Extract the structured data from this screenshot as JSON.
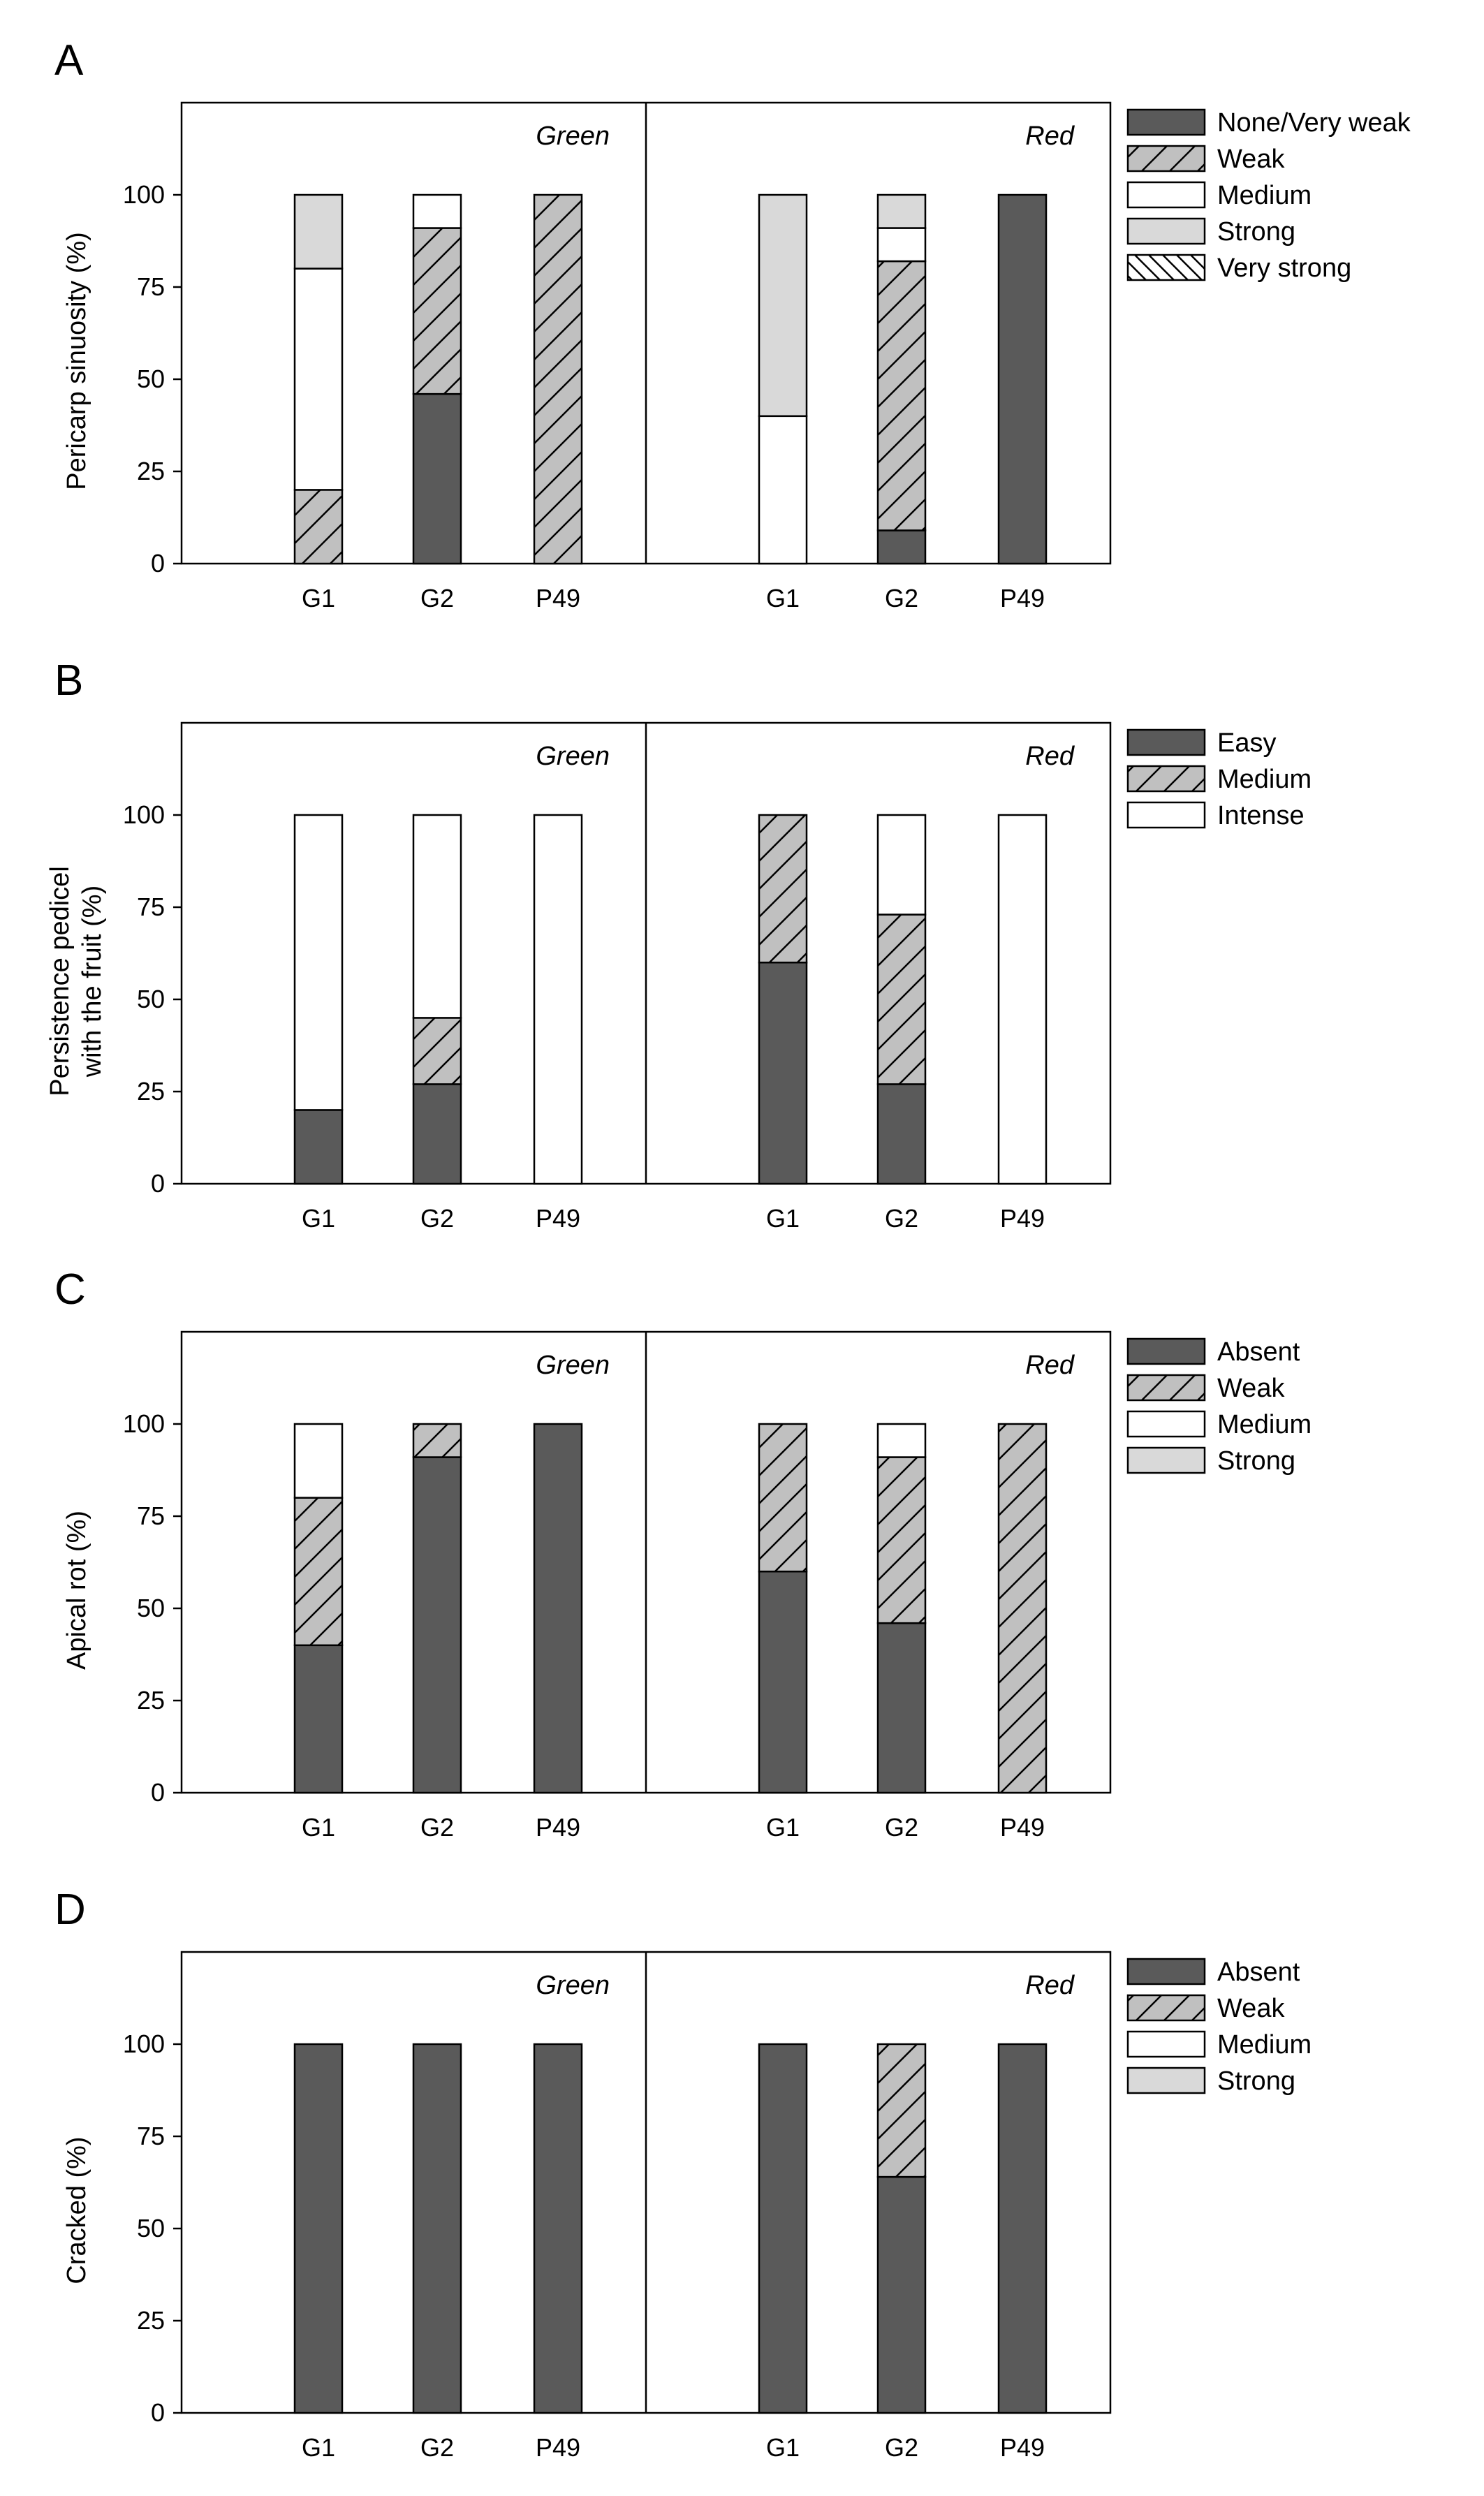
{
  "colors": {
    "none_very_weak": "#5a5a5a",
    "absent": "#5a5a5a",
    "easy": "#5a5a5a",
    "weak": "#c0c0c0",
    "medium": "#ffffff",
    "intense": "#ffffff",
    "strong": "#d9d9d9",
    "very_strong": "#ffffff"
  },
  "chart_data": [
    {
      "type": "bar",
      "stacked": true,
      "panel_label": "A",
      "ylabel": "Pericarp sinuosity (%)",
      "ylim": [
        0,
        125
      ],
      "yticks": [
        0,
        25,
        50,
        75,
        100
      ],
      "categories": [
        "G1",
        "G2",
        "P49"
      ],
      "groups": [
        "Green",
        "Red"
      ],
      "legend": [
        "None/Very weak",
        "Weak",
        "Medium",
        "Strong",
        "Very strong"
      ],
      "series": [
        {
          "name": "None/Very weak",
          "group": "Green",
          "values": [
            0,
            46,
            0
          ]
        },
        {
          "name": "Weak",
          "group": "Green",
          "values": [
            20,
            45,
            100
          ]
        },
        {
          "name": "Medium",
          "group": "Green",
          "values": [
            60,
            9,
            0
          ]
        },
        {
          "name": "Strong",
          "group": "Green",
          "values": [
            20,
            0,
            0
          ]
        },
        {
          "name": "Very strong",
          "group": "Green",
          "values": [
            0,
            0,
            0
          ]
        },
        {
          "name": "None/Very weak",
          "group": "Red",
          "values": [
            0,
            9,
            100
          ]
        },
        {
          "name": "Weak",
          "group": "Red",
          "values": [
            0,
            73,
            0
          ]
        },
        {
          "name": "Medium",
          "group": "Red",
          "values": [
            40,
            9,
            0
          ]
        },
        {
          "name": "Strong",
          "group": "Red",
          "values": [
            60,
            9,
            0
          ]
        },
        {
          "name": "Very strong",
          "group": "Red",
          "values": [
            0,
            0,
            0
          ]
        }
      ]
    },
    {
      "type": "bar",
      "stacked": true,
      "panel_label": "B",
      "ylabel": [
        "Persistence pedicel",
        "with the fruit (%)"
      ],
      "ylim": [
        0,
        125
      ],
      "yticks": [
        0,
        25,
        50,
        75,
        100
      ],
      "categories": [
        "G1",
        "G2",
        "P49"
      ],
      "groups": [
        "Green",
        "Red"
      ],
      "legend": [
        "Easy",
        "Medium",
        "Intense"
      ],
      "series": [
        {
          "name": "Easy",
          "group": "Green",
          "values": [
            20,
            27,
            0
          ]
        },
        {
          "name": "Medium",
          "group": "Green",
          "values": [
            0,
            18,
            0
          ]
        },
        {
          "name": "Intense",
          "group": "Green",
          "values": [
            80,
            55,
            100
          ]
        },
        {
          "name": "Easy",
          "group": "Red",
          "values": [
            60,
            27,
            0
          ]
        },
        {
          "name": "Medium",
          "group": "Red",
          "values": [
            40,
            46,
            0
          ]
        },
        {
          "name": "Intense",
          "group": "Red",
          "values": [
            0,
            27,
            100
          ]
        }
      ]
    },
    {
      "type": "bar",
      "stacked": true,
      "panel_label": "C",
      "ylabel": "Apical rot (%)",
      "ylim": [
        0,
        125
      ],
      "yticks": [
        0,
        25,
        50,
        75,
        100
      ],
      "categories": [
        "G1",
        "G2",
        "P49"
      ],
      "groups": [
        "Green",
        "Red"
      ],
      "legend": [
        "Absent",
        "Weak",
        "Medium",
        "Strong"
      ],
      "series": [
        {
          "name": "Absent",
          "group": "Green",
          "values": [
            40,
            91,
            100
          ]
        },
        {
          "name": "Weak",
          "group": "Green",
          "values": [
            40,
            9,
            0
          ]
        },
        {
          "name": "Medium",
          "group": "Green",
          "values": [
            20,
            0,
            0
          ]
        },
        {
          "name": "Strong",
          "group": "Green",
          "values": [
            0,
            0,
            0
          ]
        },
        {
          "name": "Absent",
          "group": "Red",
          "values": [
            60,
            46,
            0
          ]
        },
        {
          "name": "Weak",
          "group": "Red",
          "values": [
            40,
            45,
            100
          ]
        },
        {
          "name": "Medium",
          "group": "Red",
          "values": [
            0,
            9,
            0
          ]
        },
        {
          "name": "Strong",
          "group": "Red",
          "values": [
            0,
            0,
            0
          ]
        }
      ]
    },
    {
      "type": "bar",
      "stacked": true,
      "panel_label": "D",
      "ylabel": "Cracked (%)",
      "ylim": [
        0,
        125
      ],
      "yticks": [
        0,
        25,
        50,
        75,
        100
      ],
      "categories": [
        "G1",
        "G2",
        "P49"
      ],
      "groups": [
        "Green",
        "Red"
      ],
      "legend": [
        "Absent",
        "Weak",
        "Medium",
        "Strong"
      ],
      "series": [
        {
          "name": "Absent",
          "group": "Green",
          "values": [
            100,
            100,
            100
          ]
        },
        {
          "name": "Weak",
          "group": "Green",
          "values": [
            0,
            0,
            0
          ]
        },
        {
          "name": "Medium",
          "group": "Green",
          "values": [
            0,
            0,
            0
          ]
        },
        {
          "name": "Strong",
          "group": "Green",
          "values": [
            0,
            0,
            0
          ]
        },
        {
          "name": "Absent",
          "group": "Red",
          "values": [
            100,
            64,
            100
          ]
        },
        {
          "name": "Weak",
          "group": "Red",
          "values": [
            0,
            36,
            0
          ]
        },
        {
          "name": "Medium",
          "group": "Red",
          "values": [
            0,
            0,
            0
          ]
        },
        {
          "name": "Strong",
          "group": "Red",
          "values": [
            0,
            0,
            0
          ]
        }
      ]
    }
  ]
}
